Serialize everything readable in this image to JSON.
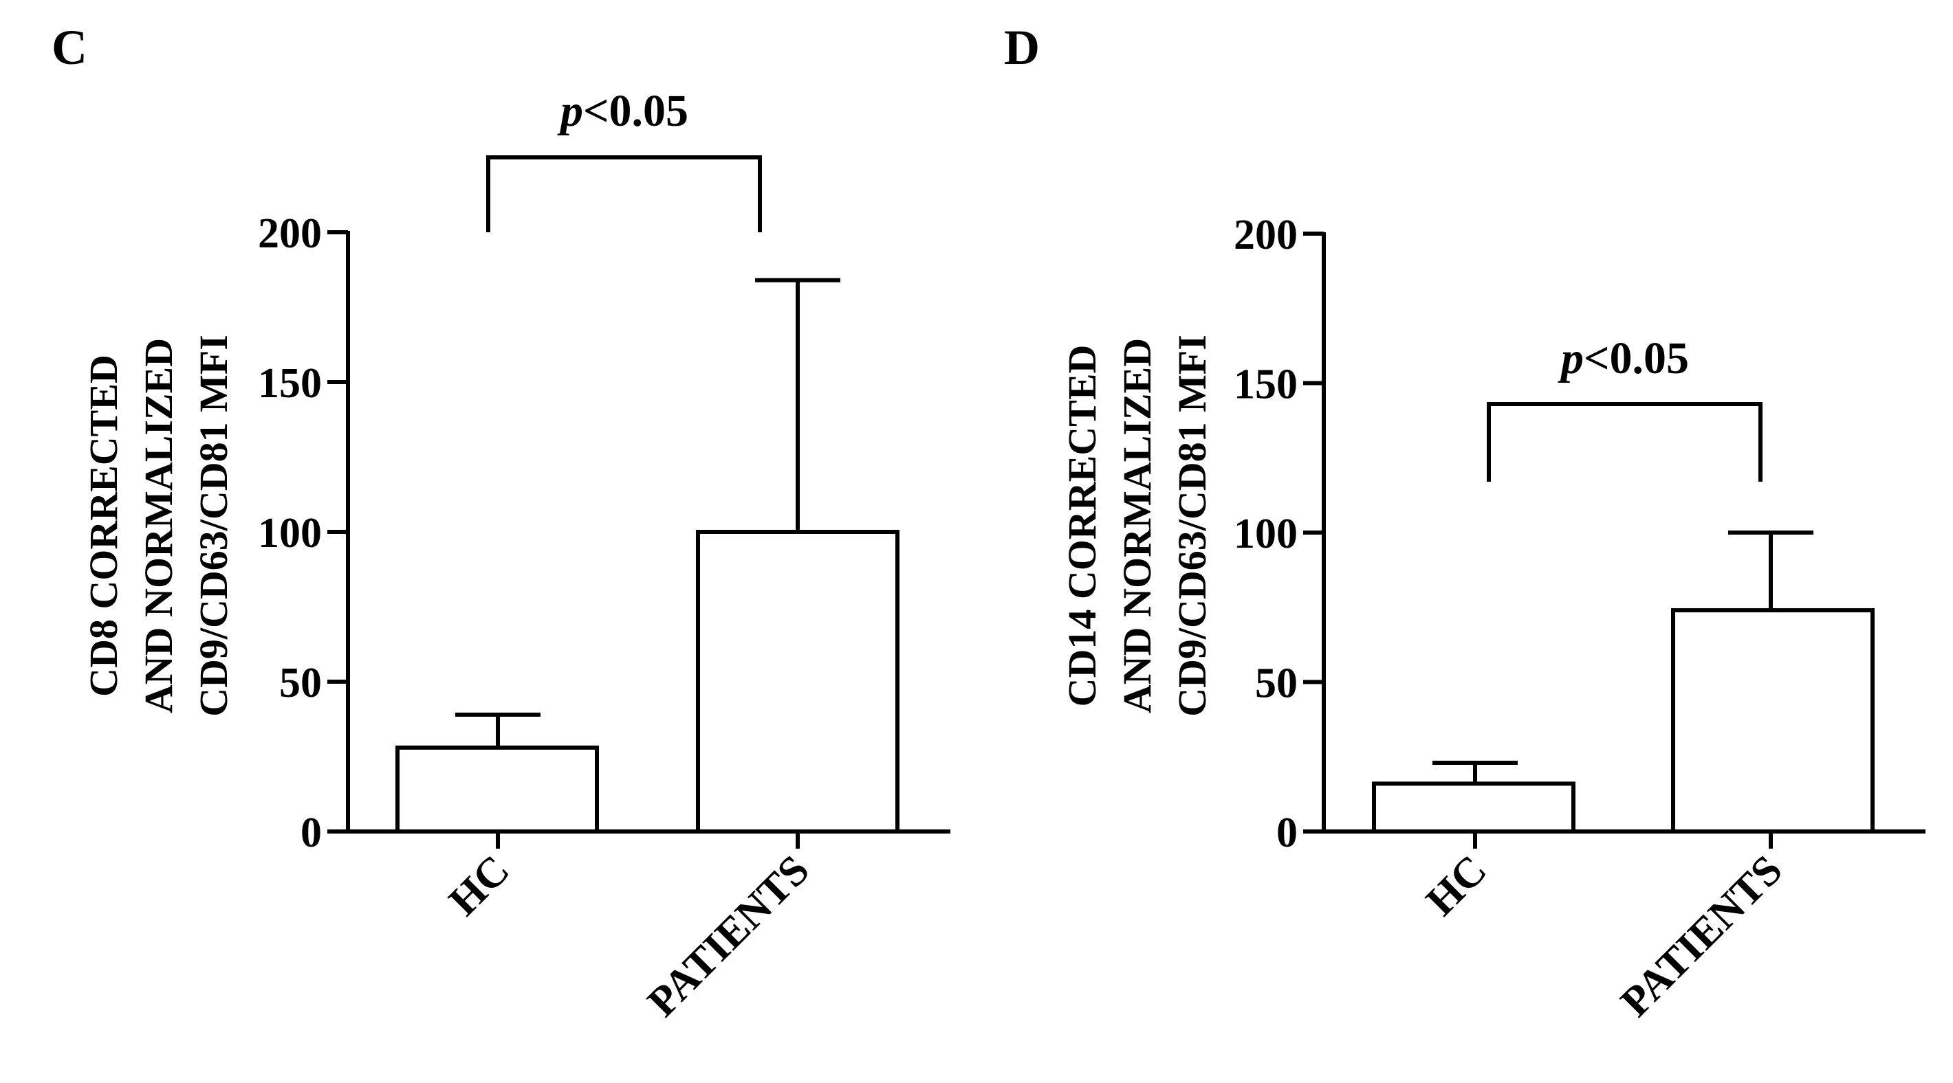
{
  "chart_data": [
    {
      "panel_label": "C",
      "type": "bar",
      "categories": [
        "HC",
        "PATIENTS"
      ],
      "values": [
        28,
        100
      ],
      "error_upper": [
        39,
        184
      ],
      "ylim": [
        0,
        200
      ],
      "yticks": [
        0,
        50,
        100,
        150,
        200
      ],
      "ylabel_lines": [
        "CD8 CORRECTED",
        "AND NORMALIZED",
        "CD9/CD63/CD81 MFI"
      ],
      "xlabel": "",
      "title": "",
      "grid": false,
      "annotation": {
        "p_symbol": "p",
        "rest": "<0.05",
        "bracket_y": 225,
        "leg_bottom_y": 200
      }
    },
    {
      "panel_label": "D",
      "type": "bar",
      "categories": [
        "HC",
        "PATIENTS"
      ],
      "values": [
        16,
        74
      ],
      "error_upper": [
        23,
        100
      ],
      "ylim": [
        0,
        200
      ],
      "yticks": [
        0,
        50,
        100,
        150,
        200
      ],
      "ylabel_lines": [
        "CD14 CORRECTED",
        "AND NORMALIZED",
        "CD9/CD63/CD81 MFI"
      ],
      "xlabel": "",
      "title": "",
      "grid": false,
      "annotation": {
        "p_symbol": "p",
        "rest": "<0.05",
        "bracket_y": 143,
        "leg_bottom_y": 117
      }
    }
  ]
}
